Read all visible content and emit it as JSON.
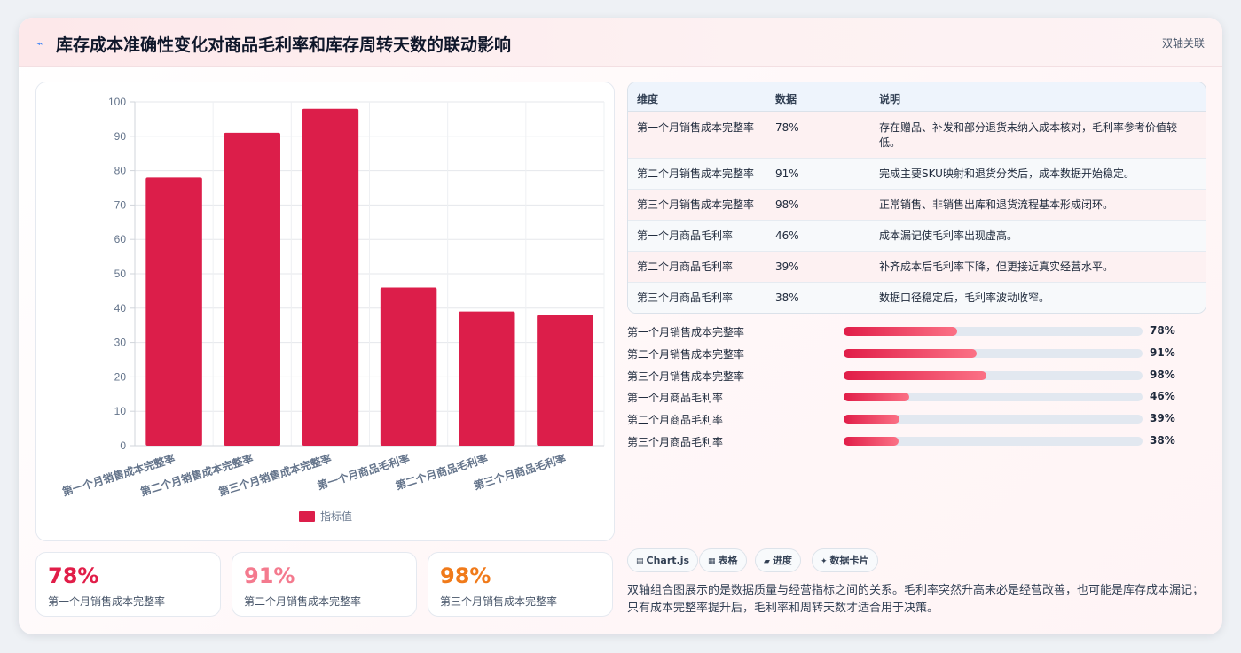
{
  "header": {
    "icon": "chart-line-icon",
    "title": "库存成本准确性变化对商品毛利率和库存周转天数的联动影响",
    "badge": "双轴关联"
  },
  "chart_data": {
    "type": "bar",
    "categories": [
      "第一个月销售成本完整率",
      "第二个月销售成本完整率",
      "第三个月销售成本完整率",
      "第一个月商品毛利率",
      "第二个月商品毛利率",
      "第三个月商品毛利率"
    ],
    "series": [
      {
        "name": "指标值",
        "values": [
          78,
          91,
          98,
          46,
          39,
          38
        ],
        "color": "#dc1e4a"
      }
    ],
    "yticks": [
      "0",
      "10",
      "20",
      "30",
      "40",
      "50",
      "60",
      "70",
      "80",
      "90",
      "100"
    ],
    "ylim": [
      0,
      100
    ],
    "grid": true,
    "legend": "bottom"
  },
  "kpis": [
    {
      "value": "78%",
      "label": "第一个月销售成本完整率",
      "color": "#e11d48"
    },
    {
      "value": "91%",
      "label": "第二个月销售成本完整率",
      "color": "#f47a8e"
    },
    {
      "value": "98%",
      "label": "第三个月销售成本完整率",
      "color": "#f07a1a"
    }
  ],
  "table": {
    "headers": [
      "维度",
      "数据",
      "说明"
    ],
    "rows": [
      {
        "dim": "第一个月销售成本完整率",
        "val": "78%",
        "desc": "存在赠品、补发和部分退货未纳入成本核对，毛利率参考价值较低。"
      },
      {
        "dim": "第二个月销售成本完整率",
        "val": "91%",
        "desc": "完成主要SKU映射和退货分类后，成本数据开始稳定。"
      },
      {
        "dim": "第三个月销售成本完整率",
        "val": "98%",
        "desc": "正常销售、非销售出库和退货流程基本形成闭环。"
      },
      {
        "dim": "第一个月商品毛利率",
        "val": "46%",
        "desc": "成本漏记使毛利率出现虚高。"
      },
      {
        "dim": "第二个月商品毛利率",
        "val": "39%",
        "desc": "补齐成本后毛利率下降，但更接近真实经营水平。"
      },
      {
        "dim": "第三个月商品毛利率",
        "val": "38%",
        "desc": "数据口径稳定后，毛利率波动收窄。"
      }
    ]
  },
  "progress": [
    {
      "label": "第一个月销售成本完整率",
      "value": "78%",
      "fill": 0.38
    },
    {
      "label": "第二个月销售成本完整率",
      "value": "91%",
      "fill": 0.445
    },
    {
      "label": "第三个月销售成本完整率",
      "value": "98%",
      "fill": 0.478
    },
    {
      "label": "第一个月商品毛利率",
      "value": "46%",
      "fill": 0.22
    },
    {
      "label": "第二个月商品毛利率",
      "value": "39%",
      "fill": 0.188
    },
    {
      "label": "第三个月商品毛利率",
      "value": "38%",
      "fill": 0.183
    }
  ],
  "chips": [
    {
      "icon": "chart-icon",
      "glyph": "▤",
      "label": "Chart.js"
    },
    {
      "icon": "table-icon",
      "glyph": "▦",
      "label": "表格"
    },
    {
      "icon": "progress-icon",
      "glyph": "▰",
      "label": "进度"
    },
    {
      "icon": "card-icon",
      "glyph": "✦",
      "label": "数据卡片"
    }
  ],
  "note": "双轴组合图展示的是数据质量与经营指标之间的关系。毛利率突然升高未必是经营改善，也可能是库存成本漏记；只有成本完整率提升后，毛利率和周转天数才适合用于决策。"
}
